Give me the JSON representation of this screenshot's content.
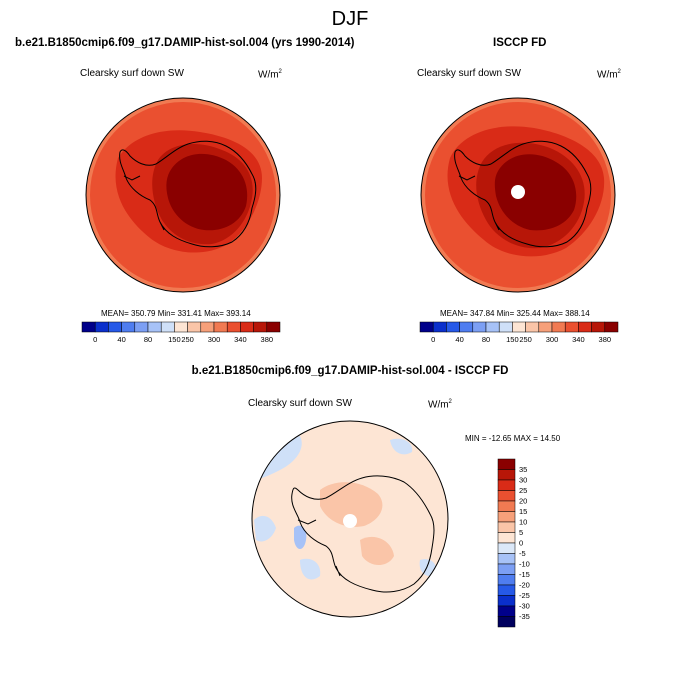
{
  "figure": {
    "title": "DJF"
  },
  "panels": [
    {
      "title": "b.e21.B1850cmip6.f09_g17.DAMIP-hist-sol.004 (yrs 1990-2014)",
      "variable": "Clearsky surf down SW",
      "units_base": "W/m",
      "units_exp": "2",
      "stats": "MEAN= 350.79  Min= 331.41  Max= 393.14",
      "colorbar": {
        "labels": [
          "0",
          "40",
          "80",
          "150",
          "250",
          "300",
          "340",
          "380"
        ],
        "colors": [
          "#00008a",
          "#0a2fcc",
          "#2659e8",
          "#4f7df0",
          "#7c9ff4",
          "#a7c2f7",
          "#cfe0f8",
          "#fde5d4",
          "#fac5a8",
          "#f6a07a",
          "#f17a52",
          "#ea5030",
          "#d92b17",
          "#b71608",
          "#8a0000"
        ]
      },
      "fills": {
        "outer": "#ea5030",
        "middle": "#d92b17",
        "inner": "#b71608",
        "core": "#8a0000",
        "band": "#f17a52"
      }
    },
    {
      "title": "ISCCP FD",
      "variable": "Clearsky surf down SW",
      "units_base": "W/m",
      "units_exp": "2",
      "stats": "MEAN= 347.84  Min= 325.44  Max= 388.14",
      "colorbar": {
        "labels": [
          "0",
          "40",
          "80",
          "150",
          "250",
          "300",
          "340",
          "380"
        ],
        "colors": [
          "#00008a",
          "#0a2fcc",
          "#2659e8",
          "#4f7df0",
          "#7c9ff4",
          "#a7c2f7",
          "#cfe0f8",
          "#fde5d4",
          "#fac5a8",
          "#f6a07a",
          "#f17a52",
          "#ea5030",
          "#d92b17",
          "#b71608",
          "#8a0000"
        ]
      },
      "fills": {
        "outer": "#ea5030",
        "middle": "#d92b17",
        "inner": "#b71608",
        "core": "#8a0000",
        "band": "#f17a52"
      }
    },
    {
      "title": "b.e21.B1850cmip6.f09_g17.DAMIP-hist-sol.004 - ISCCP FD",
      "variable": "Clearsky surf down SW",
      "units_base": "W/m",
      "units_exp": "2",
      "stats": "MIN = -12.65 MAX =  14.50",
      "colorbar": {
        "labels": [
          "35",
          "30",
          "25",
          "20",
          "15",
          "10",
          "5",
          "0",
          "-5",
          "-10",
          "-15",
          "-20",
          "-25",
          "-30",
          "-35"
        ],
        "colors": [
          "#8a0000",
          "#b71608",
          "#d92b17",
          "#ea5030",
          "#f17a52",
          "#f6a07a",
          "#fac5a8",
          "#fde5d4",
          "#dbe8f8",
          "#a7c2f7",
          "#7c9ff4",
          "#4f7df0",
          "#2659e8",
          "#0a2fcc",
          "#00008a",
          "#00005e"
        ]
      },
      "fills": {
        "base": "#fde5d4",
        "light": "#fac5a8",
        "blue": "#cfe0f8",
        "blue2": "#a7c2f7"
      }
    }
  ]
}
